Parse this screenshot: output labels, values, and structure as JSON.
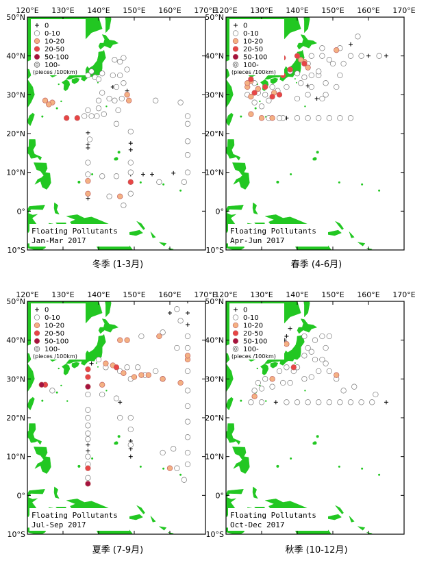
{
  "lon_ticks": [
    "120°E",
    "130°E",
    "140°E",
    "150°E",
    "160°E",
    "170°E"
  ],
  "lat_ticks": [
    "50°N",
    "40°N",
    "30°N",
    "20°N",
    "10°N",
    "0°",
    "10°S"
  ],
  "legend": {
    "items": [
      {
        "label": "0",
        "symbol": "plus",
        "color": "#000000"
      },
      {
        "label": "0-10",
        "symbol": "circle",
        "color": "#ffffff"
      },
      {
        "label": "10-20",
        "symbol": "circle",
        "color": "#f4b183"
      },
      {
        "label": "20-50",
        "symbol": "circle",
        "color": "#e84545"
      },
      {
        "label": "50-100",
        "symbol": "circle",
        "color": "#a4123f"
      },
      {
        "label": "100-",
        "symbol": "double-circle",
        "color": "#ffffff"
      }
    ],
    "unit": "(pieces /100km)"
  },
  "colors": {
    "land": "#22c722",
    "frame": "#000000"
  },
  "panels": [
    {
      "id": "winter",
      "map_title": [
        "Floating Pollutants",
        "Jan-Mar 2017"
      ],
      "caption": "冬季 (1-3月)",
      "points": [
        [
          137,
          20.2,
          0
        ],
        [
          137,
          17.2,
          0
        ],
        [
          137,
          16.3,
          0
        ],
        [
          149,
          17.5,
          0
        ],
        [
          149,
          15.8,
          0
        ],
        [
          149,
          9.5,
          0
        ],
        [
          152.5,
          9.5,
          0
        ],
        [
          155,
          9.5,
          0
        ],
        [
          161,
          9.8,
          0
        ],
        [
          137,
          3.3,
          0
        ],
        [
          144,
          32,
          0
        ],
        [
          148,
          31,
          0
        ],
        [
          137,
          35,
          1
        ],
        [
          138,
          36,
          1
        ],
        [
          139,
          34.5,
          1
        ],
        [
          140,
          34,
          1
        ],
        [
          141,
          35.5,
          1
        ],
        [
          144,
          35,
          1
        ],
        [
          144.5,
          39,
          1
        ],
        [
          147,
          39.5,
          1
        ],
        [
          146,
          38.5,
          1
        ],
        [
          148,
          36.5,
          1
        ],
        [
          146,
          35,
          1
        ],
        [
          147,
          33,
          1
        ],
        [
          145,
          32,
          1
        ],
        [
          144.5,
          28.5,
          1
        ],
        [
          145.5,
          26,
          1
        ],
        [
          145,
          22.5,
          1
        ],
        [
          146.5,
          29,
          1
        ],
        [
          143,
          29,
          1
        ],
        [
          141,
          30.5,
          1
        ],
        [
          140,
          28.5,
          1
        ],
        [
          140,
          26.5,
          1
        ],
        [
          141.5,
          25,
          1
        ],
        [
          137,
          26,
          1
        ],
        [
          138,
          24.5,
          1
        ],
        [
          136,
          24.5,
          1
        ],
        [
          139.5,
          24.5,
          1
        ],
        [
          137.5,
          18.5,
          1
        ],
        [
          137,
          12.5,
          1
        ],
        [
          137,
          9.5,
          1
        ],
        [
          141,
          9,
          1
        ],
        [
          145,
          9,
          1
        ],
        [
          149,
          20.5,
          1
        ],
        [
          149,
          12.5,
          1
        ],
        [
          149,
          10,
          1
        ],
        [
          149,
          4.5,
          1
        ],
        [
          143,
          3.8,
          1
        ],
        [
          147,
          1.5,
          1
        ],
        [
          156,
          28.5,
          1
        ],
        [
          163,
          28,
          1
        ],
        [
          165,
          24.5,
          1
        ],
        [
          165,
          22.5,
          1
        ],
        [
          165,
          18,
          1
        ],
        [
          165,
          14.5,
          1
        ],
        [
          165,
          10,
          1
        ],
        [
          164,
          7.5,
          1
        ],
        [
          157,
          7.5,
          1
        ],
        [
          125,
          28.5,
          2
        ],
        [
          127,
          28,
          2
        ],
        [
          126,
          27.5,
          2
        ],
        [
          148,
          30,
          2
        ],
        [
          148.5,
          28.5,
          2
        ],
        [
          137,
          4.5,
          2
        ],
        [
          137,
          7.8,
          2
        ],
        [
          146,
          3.8,
          2
        ],
        [
          131,
          24,
          3
        ],
        [
          134,
          24,
          3
        ],
        [
          149,
          7.5,
          3
        ]
      ]
    },
    {
      "id": "spring",
      "map_title": [
        "Floating Pollutants",
        "Apr-Jun 2017"
      ],
      "caption": "春季 (4-6月)",
      "points": [
        [
          155,
          43,
          0
        ],
        [
          160,
          40,
          0
        ],
        [
          165,
          40,
          0
        ],
        [
          143,
          32.3,
          0
        ],
        [
          145.5,
          29,
          0
        ],
        [
          137,
          24,
          0
        ],
        [
          140.5,
          39.5,
          0
        ],
        [
          157,
          45,
          1
        ],
        [
          155,
          40,
          1
        ],
        [
          158,
          40,
          1
        ],
        [
          163,
          40,
          1
        ],
        [
          152,
          42,
          1
        ],
        [
          147,
          42,
          1
        ],
        [
          149,
          39,
          1
        ],
        [
          150,
          38,
          1
        ],
        [
          153,
          38,
          1
        ],
        [
          146,
          35,
          1
        ],
        [
          148,
          33,
          1
        ],
        [
          152,
          35,
          1
        ],
        [
          151,
          32,
          1
        ],
        [
          148,
          30,
          1
        ],
        [
          147,
          29,
          1
        ],
        [
          144,
          35,
          1
        ],
        [
          143,
          38,
          1
        ],
        [
          144,
          40,
          1
        ],
        [
          147,
          40,
          1
        ],
        [
          146,
          36,
          1
        ],
        [
          141,
          33,
          1
        ],
        [
          142,
          34.5,
          1
        ],
        [
          140,
          35.5,
          1
        ],
        [
          138,
          36,
          1
        ],
        [
          133,
          32,
          1
        ],
        [
          131,
          30,
          1
        ],
        [
          130,
          27,
          1
        ],
        [
          128,
          28,
          1
        ],
        [
          126,
          30,
          1
        ],
        [
          128,
          33,
          1
        ],
        [
          129,
          30.5,
          1
        ],
        [
          132,
          28.5,
          1
        ],
        [
          134.5,
          31,
          1
        ],
        [
          137,
          32,
          1
        ],
        [
          140,
          29,
          1
        ],
        [
          143,
          30,
          1
        ],
        [
          136,
          24,
          1
        ],
        [
          140,
          24,
          1
        ],
        [
          143,
          24,
          1
        ],
        [
          146,
          24,
          1
        ],
        [
          149,
          24,
          1
        ],
        [
          152,
          24,
          1
        ],
        [
          155,
          24,
          1
        ],
        [
          135,
          24,
          1
        ],
        [
          132,
          24,
          1
        ],
        [
          144,
          32,
          1
        ],
        [
          129,
          31.5,
          2
        ],
        [
          127,
          29.5,
          2
        ],
        [
          143,
          37,
          2
        ],
        [
          142,
          38.5,
          2
        ],
        [
          141,
          39,
          2
        ],
        [
          151,
          41.5,
          2
        ],
        [
          127,
          25,
          2
        ],
        [
          130,
          24,
          2
        ],
        [
          133,
          24,
          2
        ],
        [
          126,
          32,
          2
        ],
        [
          127,
          33.5,
          2
        ],
        [
          126,
          33,
          2
        ],
        [
          133.5,
          30.5,
          2
        ],
        [
          134,
          39,
          3
        ],
        [
          136,
          39.5,
          3
        ],
        [
          140,
          40,
          3
        ],
        [
          138,
          36.5,
          3
        ],
        [
          142,
          38,
          3
        ],
        [
          127,
          34,
          3
        ],
        [
          128,
          30.5,
          3
        ],
        [
          131,
          32,
          3
        ],
        [
          133,
          29.5,
          3
        ],
        [
          135,
          30,
          3
        ],
        [
          136,
          35,
          3
        ],
        [
          131,
          36.5,
          4
        ]
      ]
    },
    {
      "id": "summer",
      "map_title": [
        "Floating Pollutants",
        "Jul-Sep 2017"
      ],
      "caption": "夏季 (7-9月)",
      "points": [
        [
          160,
          47,
          0
        ],
        [
          165,
          50,
          0
        ],
        [
          165,
          47,
          0
        ],
        [
          165,
          44,
          0
        ],
        [
          146,
          24,
          0
        ],
        [
          149,
          14,
          0
        ],
        [
          149,
          12,
          0
        ],
        [
          149,
          10,
          0
        ],
        [
          137,
          13,
          0
        ],
        [
          137,
          11.5,
          0
        ],
        [
          138,
          34,
          0
        ],
        [
          162,
          48,
          1
        ],
        [
          165,
          41,
          1
        ],
        [
          165,
          38,
          1
        ],
        [
          165,
          32,
          1
        ],
        [
          165,
          27,
          1
        ],
        [
          165,
          23,
          1
        ],
        [
          165,
          19,
          1
        ],
        [
          165,
          15,
          1
        ],
        [
          165,
          11,
          1
        ],
        [
          165,
          8,
          1
        ],
        [
          164,
          4,
          1
        ],
        [
          162,
          7,
          1
        ],
        [
          158,
          30,
          1
        ],
        [
          156,
          32,
          1
        ],
        [
          153,
          31,
          1
        ],
        [
          149,
          30,
          1
        ],
        [
          151,
          33,
          1
        ],
        [
          148,
          33,
          1
        ],
        [
          146,
          32,
          1
        ],
        [
          142,
          33,
          1
        ],
        [
          141,
          26,
          1
        ],
        [
          137,
          26,
          1
        ],
        [
          137,
          22,
          1
        ],
        [
          137,
          20,
          1
        ],
        [
          137,
          18,
          1
        ],
        [
          137,
          16,
          1
        ],
        [
          137,
          14.5,
          1
        ],
        [
          137,
          10,
          1
        ],
        [
          137,
          8,
          1
        ],
        [
          137,
          4.5,
          1
        ],
        [
          145,
          25,
          1
        ],
        [
          146,
          20,
          1
        ],
        [
          149,
          20,
          1
        ],
        [
          149,
          17,
          1
        ],
        [
          149,
          13,
          1
        ],
        [
          158,
          11,
          1
        ],
        [
          161,
          12,
          1
        ],
        [
          163,
          45,
          1
        ],
        [
          158,
          42,
          1
        ],
        [
          152,
          41,
          1
        ],
        [
          140,
          35,
          1
        ],
        [
          127,
          27,
          1
        ],
        [
          162,
          38,
          1
        ],
        [
          142,
          34,
          2
        ],
        [
          144,
          33.5,
          2
        ],
        [
          147,
          31.5,
          2
        ],
        [
          141,
          28.5,
          2
        ],
        [
          150,
          30.5,
          2
        ],
        [
          154,
          31,
          2
        ],
        [
          158,
          30,
          2
        ],
        [
          157,
          41,
          2
        ],
        [
          148,
          40,
          2
        ],
        [
          146,
          40,
          2
        ],
        [
          165,
          35,
          2
        ],
        [
          165,
          36,
          2
        ],
        [
          160,
          7,
          2
        ],
        [
          163,
          29,
          2
        ],
        [
          152,
          31,
          2
        ],
        [
          125,
          28.5,
          3
        ],
        [
          137,
          7,
          3
        ],
        [
          145,
          33,
          3
        ],
        [
          137,
          30.5,
          3
        ],
        [
          137,
          32.5,
          3
        ],
        [
          124,
          28.5,
          4
        ],
        [
          137,
          3,
          4
        ],
        [
          137,
          28,
          4
        ]
      ]
    },
    {
      "id": "autumn",
      "map_title": [
        "Floating Pollutants",
        "Oct-Dec 2017"
      ],
      "caption": "秋季 (10-12月)",
      "points": [
        [
          138,
          43,
          0
        ],
        [
          137,
          41,
          0
        ],
        [
          135,
          39.5,
          0
        ],
        [
          136.5,
          40,
          0
        ],
        [
          134,
          24,
          0
        ],
        [
          165,
          24,
          0
        ],
        [
          133.5,
          38.5,
          0
        ],
        [
          142,
          41,
          1
        ],
        [
          145,
          40,
          1
        ],
        [
          147,
          41,
          1
        ],
        [
          149,
          41,
          1
        ],
        [
          143,
          38,
          1
        ],
        [
          142,
          36,
          1
        ],
        [
          140,
          33,
          1
        ],
        [
          139,
          32,
          1
        ],
        [
          137,
          33,
          1
        ],
        [
          135,
          32,
          1
        ],
        [
          131,
          30,
          1
        ],
        [
          129,
          29,
          1
        ],
        [
          130,
          27.5,
          1
        ],
        [
          128,
          27,
          1
        ],
        [
          133,
          28,
          1
        ],
        [
          136,
          29,
          1
        ],
        [
          138,
          29,
          1
        ],
        [
          142,
          30,
          1
        ],
        [
          144,
          30.5,
          1
        ],
        [
          146,
          32,
          1
        ],
        [
          148,
          34,
          1
        ],
        [
          147,
          35,
          1
        ],
        [
          145,
          35,
          1
        ],
        [
          149,
          32,
          1
        ],
        [
          151,
          30,
          1
        ],
        [
          156,
          28,
          1
        ],
        [
          153,
          27,
          1
        ],
        [
          127,
          24,
          1
        ],
        [
          130,
          24,
          1
        ],
        [
          137,
          24,
          1
        ],
        [
          140,
          24,
          1
        ],
        [
          143,
          24,
          1
        ],
        [
          146,
          24,
          1
        ],
        [
          149,
          24,
          1
        ],
        [
          152,
          24,
          1
        ],
        [
          155,
          24,
          1
        ],
        [
          158,
          24,
          1
        ],
        [
          161,
          24,
          1
        ],
        [
          162,
          26,
          1
        ],
        [
          148,
          38,
          1
        ],
        [
          144,
          37,
          1
        ],
        [
          137,
          39,
          2
        ],
        [
          128,
          25.5,
          2
        ],
        [
          151,
          31,
          2
        ],
        [
          133,
          30,
          2
        ],
        [
          134.5,
          38,
          3
        ],
        [
          139,
          33,
          3
        ],
        [
          135,
          38.5,
          4
        ]
      ]
    }
  ]
}
